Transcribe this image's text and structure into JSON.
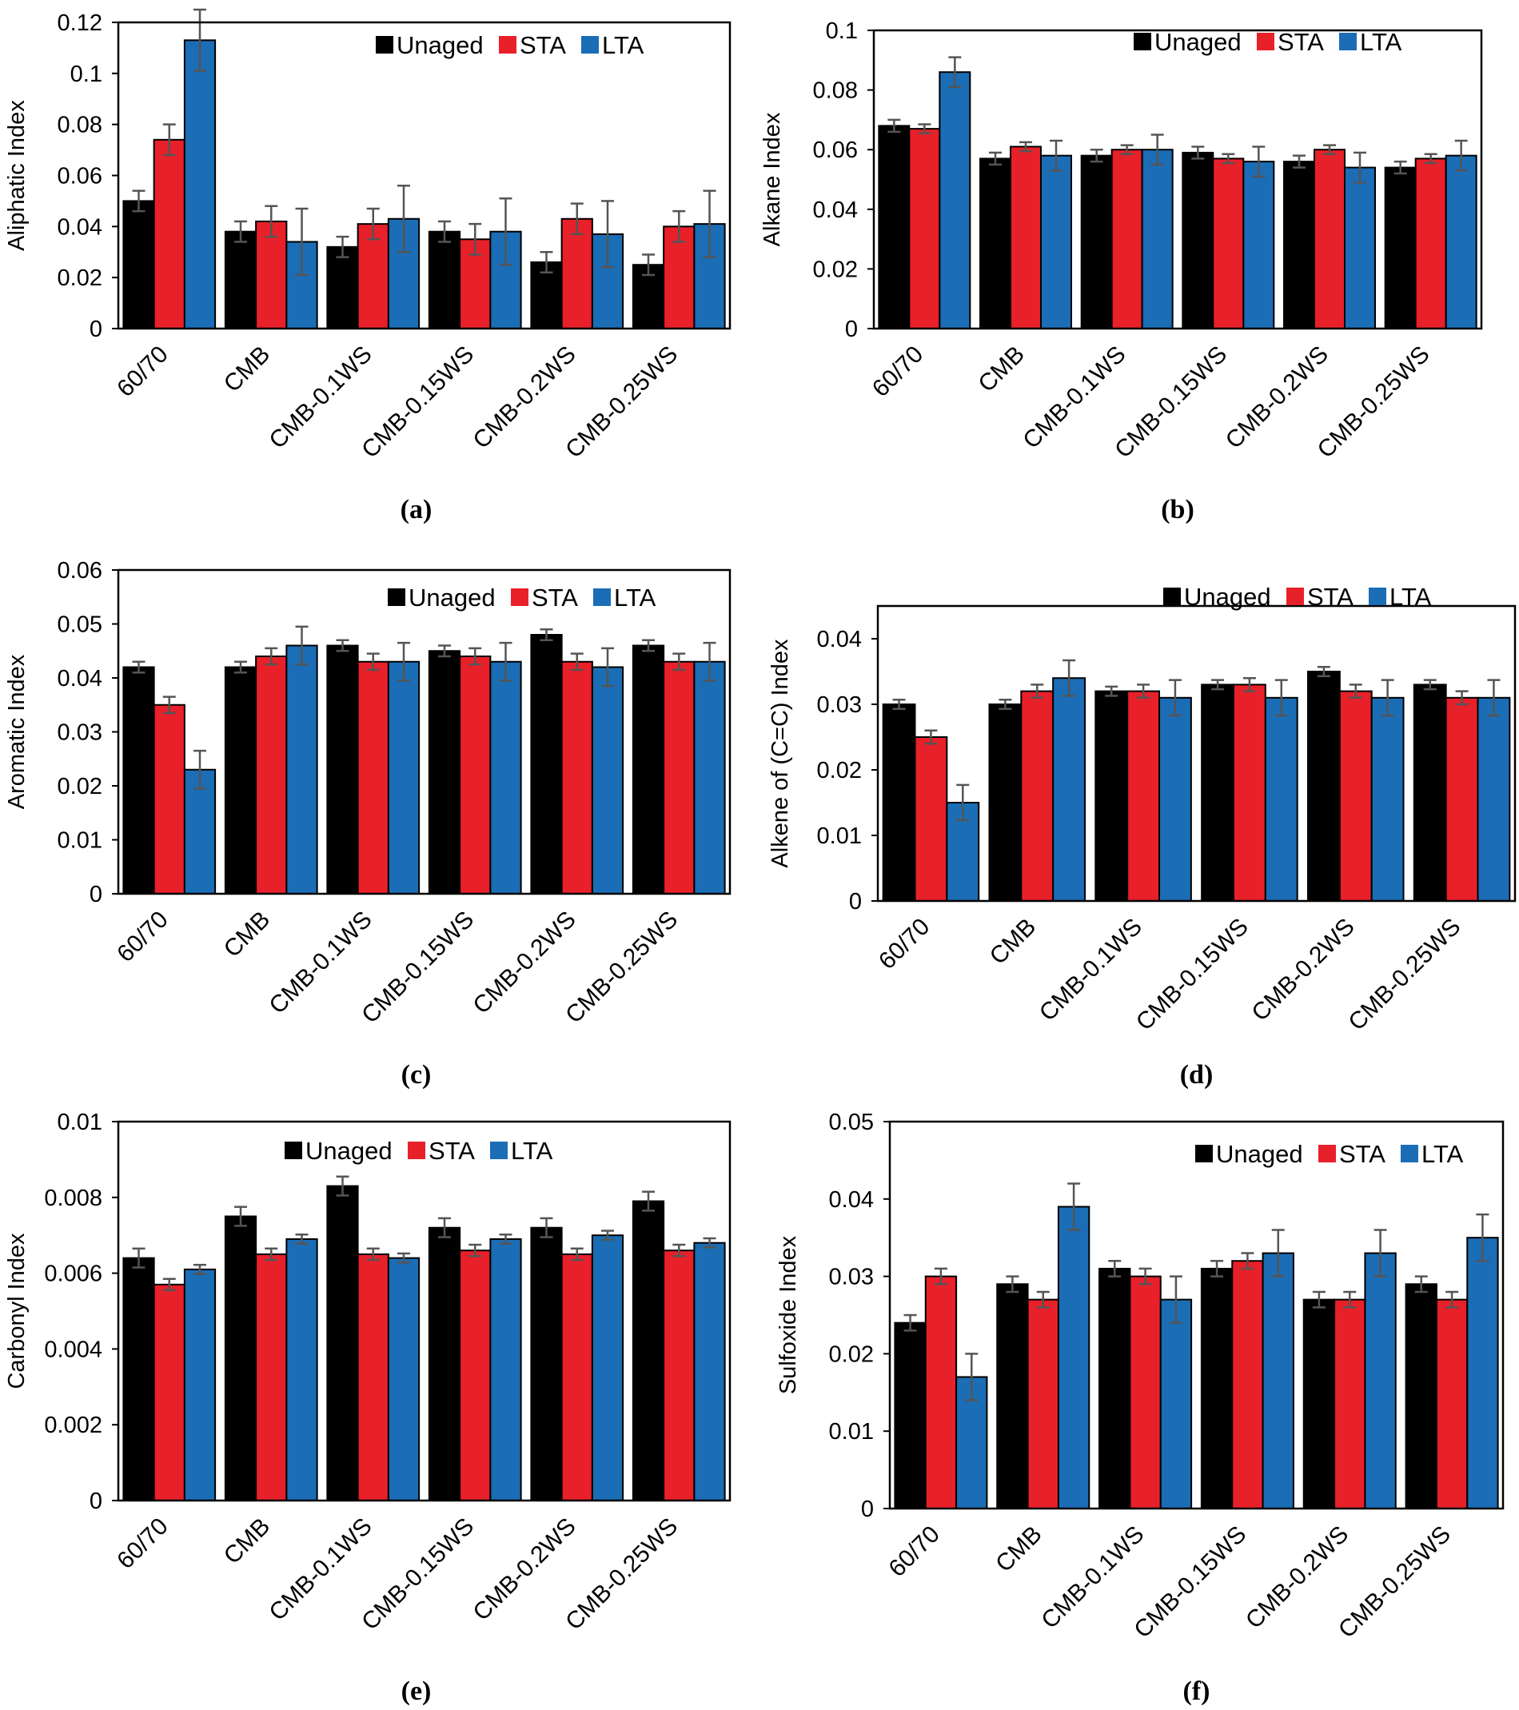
{
  "legend": [
    "Unaged",
    "STA",
    "LTA"
  ],
  "colors": {
    "Unaged": "#000000",
    "STA": "#e8202a",
    "LTA": "#1b6db5",
    "error_bar": "#555555",
    "axis": "#000000"
  },
  "chart_data": [
    {
      "panel": "(a)",
      "type": "bar",
      "ylabel": "Aliphatic Index",
      "ylim": [
        0,
        0.12
      ],
      "yticks": [
        "0",
        "0.02",
        "0.04",
        "0.06",
        "0.08",
        "0.1",
        "0.12"
      ],
      "categories": [
        "60/70",
        "CMB",
        "CMB-0.1WS",
        "CMB-0.15WS",
        "CMB-0.2WS",
        "CMB-0.25WS"
      ],
      "legend_position": "top-right",
      "series": [
        {
          "name": "Unaged",
          "values": [
            0.05,
            0.038,
            0.032,
            0.038,
            0.026,
            0.025
          ],
          "errors": [
            0.004,
            0.004,
            0.004,
            0.004,
            0.004,
            0.004
          ]
        },
        {
          "name": "STA",
          "values": [
            0.074,
            0.042,
            0.041,
            0.035,
            0.043,
            0.04
          ],
          "errors": [
            0.006,
            0.006,
            0.006,
            0.006,
            0.006,
            0.006
          ]
        },
        {
          "name": "LTA",
          "values": [
            0.113,
            0.034,
            0.043,
            0.038,
            0.037,
            0.041
          ],
          "errors": [
            0.012,
            0.013,
            0.013,
            0.013,
            0.013,
            0.013
          ]
        }
      ]
    },
    {
      "panel": "(b)",
      "type": "bar",
      "ylabel": "Alkane Index",
      "ylim": [
        0,
        0.1
      ],
      "yticks": [
        "0",
        "0.02",
        "0.04",
        "0.06",
        "0.08",
        "0.1"
      ],
      "categories": [
        "60/70",
        "CMB",
        "CMB-0.1WS",
        "CMB-0.15WS",
        "CMB-0.2WS",
        "CMB-0.25WS"
      ],
      "legend_position": "top-right",
      "series": [
        {
          "name": "Unaged",
          "values": [
            0.068,
            0.057,
            0.058,
            0.059,
            0.056,
            0.054
          ],
          "errors": [
            0.002,
            0.002,
            0.002,
            0.002,
            0.002,
            0.002
          ]
        },
        {
          "name": "STA",
          "values": [
            0.067,
            0.061,
            0.06,
            0.057,
            0.06,
            0.057
          ],
          "errors": [
            0.0015,
            0.0015,
            0.0015,
            0.0015,
            0.0015,
            0.0015
          ]
        },
        {
          "name": "LTA",
          "values": [
            0.086,
            0.058,
            0.06,
            0.056,
            0.054,
            0.058
          ],
          "errors": [
            0.005,
            0.005,
            0.005,
            0.005,
            0.005,
            0.005
          ]
        }
      ]
    },
    {
      "panel": "(c)",
      "type": "bar",
      "ylabel": "Aromatic Index",
      "ylim": [
        0,
        0.06
      ],
      "yticks": [
        "0",
        "0.01",
        "0.02",
        "0.03",
        "0.04",
        "0.05",
        "0.06"
      ],
      "categories": [
        "60/70",
        "CMB",
        "CMB-0.1WS",
        "CMB-0.15WS",
        "CMB-0.2WS",
        "CMB-0.25WS"
      ],
      "legend_position": "top-right",
      "series": [
        {
          "name": "Unaged",
          "values": [
            0.042,
            0.042,
            0.046,
            0.045,
            0.048,
            0.046
          ],
          "errors": [
            0.001,
            0.001,
            0.001,
            0.001,
            0.001,
            0.001
          ]
        },
        {
          "name": "STA",
          "values": [
            0.035,
            0.044,
            0.043,
            0.044,
            0.043,
            0.043
          ],
          "errors": [
            0.0015,
            0.0015,
            0.0015,
            0.0015,
            0.0015,
            0.0015
          ]
        },
        {
          "name": "LTA",
          "values": [
            0.023,
            0.046,
            0.043,
            0.043,
            0.042,
            0.043
          ],
          "errors": [
            0.0035,
            0.0035,
            0.0035,
            0.0035,
            0.0035,
            0.0035
          ]
        }
      ]
    },
    {
      "panel": "(d)",
      "type": "bar",
      "ylabel": "Alkene of (C=C) Index",
      "ylim": [
        0,
        0.045
      ],
      "yticks": [
        "0",
        "0.01",
        "0.02",
        "0.03",
        "0.04"
      ],
      "ytick_values": [
        0,
        0.01,
        0.02,
        0.03,
        0.04
      ],
      "categories": [
        "60/70",
        "CMB",
        "CMB-0.1WS",
        "CMB-0.15WS",
        "CMB-0.2WS",
        "CMB-0.25WS"
      ],
      "legend_position": "top-right",
      "series": [
        {
          "name": "Unaged",
          "values": [
            0.03,
            0.03,
            0.032,
            0.033,
            0.035,
            0.033
          ],
          "errors": [
            0.0007,
            0.0007,
            0.0007,
            0.0007,
            0.0007,
            0.0007
          ]
        },
        {
          "name": "STA",
          "values": [
            0.025,
            0.032,
            0.032,
            0.033,
            0.032,
            0.031
          ],
          "errors": [
            0.001,
            0.001,
            0.001,
            0.001,
            0.001,
            0.001
          ]
        },
        {
          "name": "LTA",
          "values": [
            0.015,
            0.034,
            0.031,
            0.031,
            0.031,
            0.031
          ],
          "errors": [
            0.0027,
            0.0027,
            0.0027,
            0.0027,
            0.0027,
            0.0027
          ]
        }
      ]
    },
    {
      "panel": "(e)",
      "type": "bar",
      "ylabel": "Carbonyl Index",
      "ylim": [
        0,
        0.01
      ],
      "yticks": [
        "0",
        "0.002",
        "0.004",
        "0.006",
        "0.008",
        "0.01"
      ],
      "categories": [
        "60/70",
        "CMB",
        "CMB-0.1WS",
        "CMB-0.15WS",
        "CMB-0.2WS",
        "CMB-0.25WS"
      ],
      "legend_position": "top-center",
      "series": [
        {
          "name": "Unaged",
          "values": [
            0.0064,
            0.0075,
            0.0083,
            0.0072,
            0.0072,
            0.0079
          ],
          "errors": [
            0.00025,
            0.00025,
            0.00025,
            0.00025,
            0.00025,
            0.00025
          ]
        },
        {
          "name": "STA",
          "values": [
            0.0057,
            0.0065,
            0.0065,
            0.0066,
            0.0065,
            0.0066
          ],
          "errors": [
            0.00015,
            0.00015,
            0.00015,
            0.00015,
            0.00015,
            0.00015
          ]
        },
        {
          "name": "LTA",
          "values": [
            0.0061,
            0.0069,
            0.0064,
            0.0069,
            0.007,
            0.0068
          ],
          "errors": [
            0.00012,
            0.00012,
            0.00012,
            0.00012,
            0.00012,
            0.00012
          ]
        }
      ]
    },
    {
      "panel": "(f)",
      "type": "bar",
      "ylabel": "Sulfoxide Index",
      "ylim": [
        0,
        0.05
      ],
      "yticks": [
        "0",
        "0.01",
        "0.02",
        "0.03",
        "0.04",
        "0.05"
      ],
      "categories": [
        "60/70",
        "CMB",
        "CMB-0.1WS",
        "CMB-0.15WS",
        "CMB-0.2WS",
        "CMB-0.25WS"
      ],
      "legend_position": "top-right",
      "series": [
        {
          "name": "Unaged",
          "values": [
            0.024,
            0.029,
            0.031,
            0.031,
            0.027,
            0.029
          ],
          "errors": [
            0.001,
            0.001,
            0.001,
            0.001,
            0.001,
            0.001
          ]
        },
        {
          "name": "STA",
          "values": [
            0.03,
            0.027,
            0.03,
            0.032,
            0.027,
            0.027
          ],
          "errors": [
            0.001,
            0.001,
            0.001,
            0.001,
            0.001,
            0.001
          ]
        },
        {
          "name": "LTA",
          "values": [
            0.017,
            0.039,
            0.027,
            0.033,
            0.033,
            0.035
          ],
          "errors": [
            0.003,
            0.003,
            0.003,
            0.003,
            0.003,
            0.003
          ]
        }
      ]
    }
  ]
}
